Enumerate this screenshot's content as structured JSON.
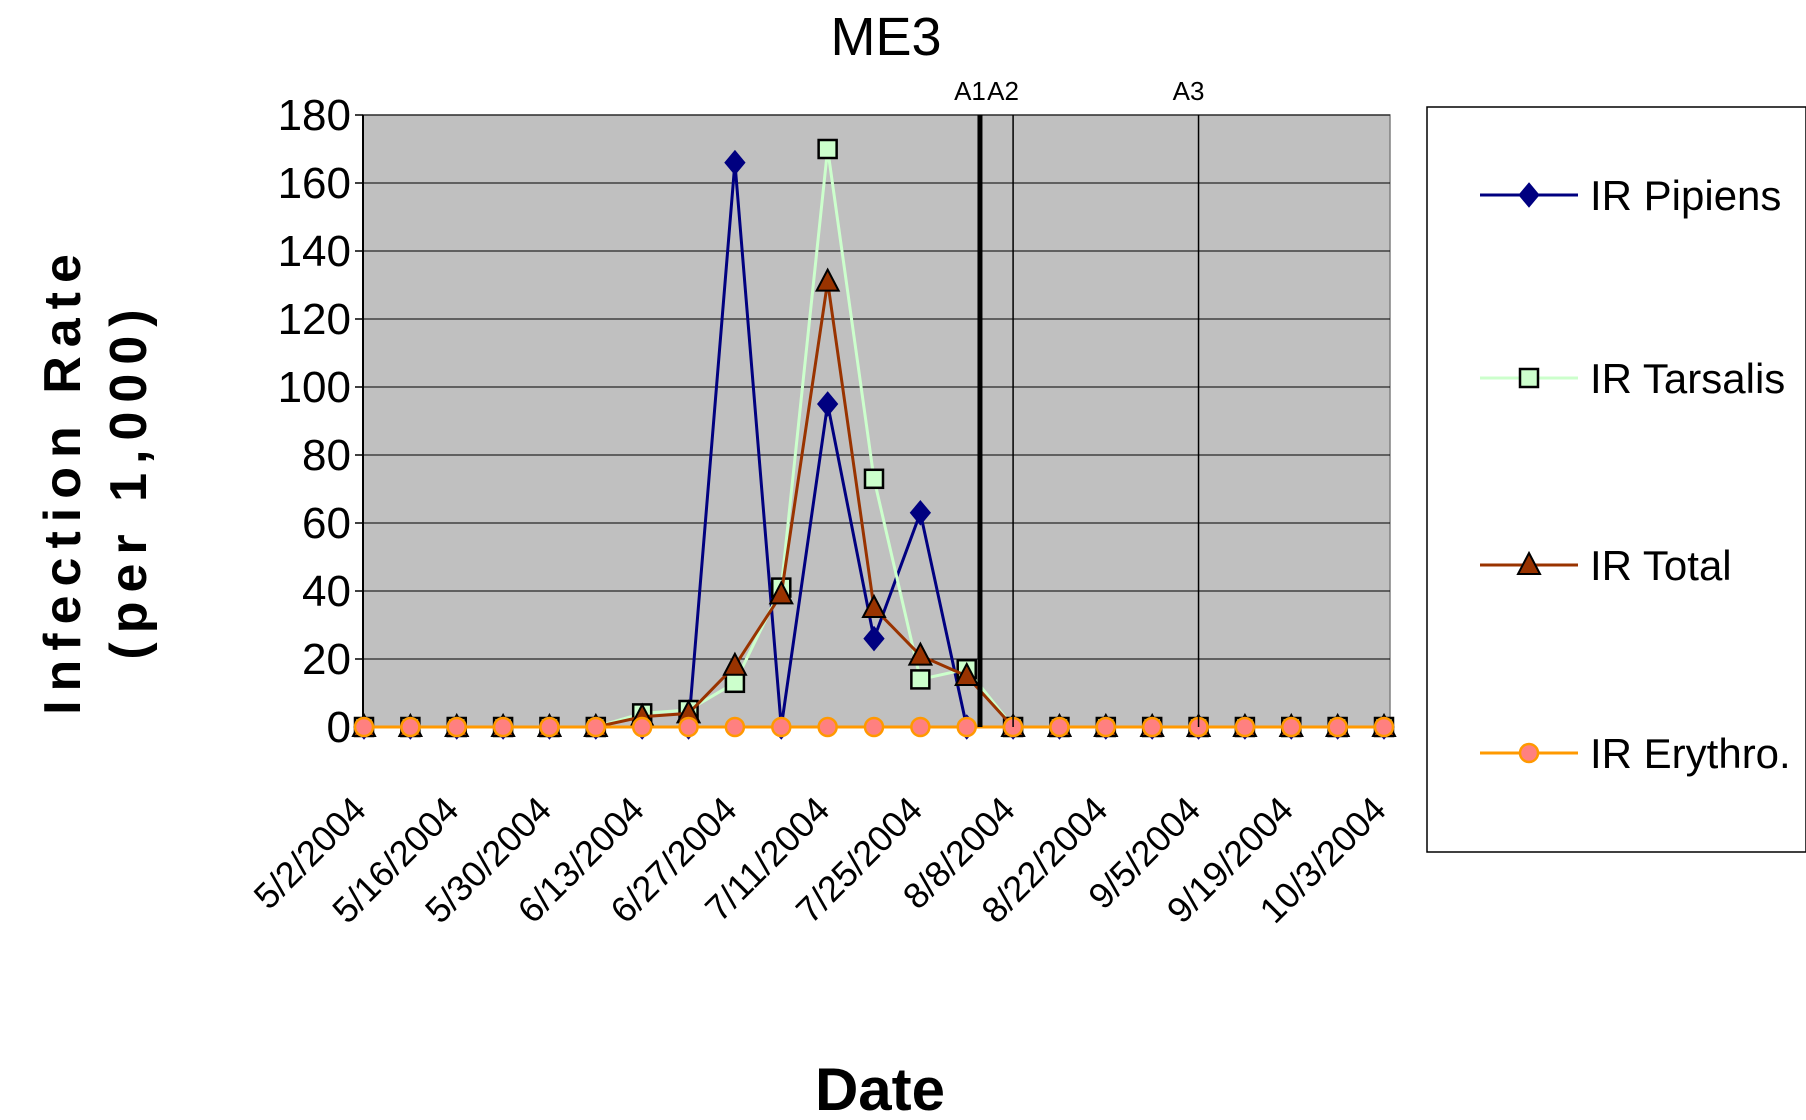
{
  "chart_data": {
    "type": "line",
    "title": "ME3",
    "xlabel": "Date",
    "ylabel_line1": "Infection Rate",
    "ylabel_line2": "(per 1,000)",
    "ylim": [
      0,
      180
    ],
    "yticks": [
      0,
      20,
      40,
      60,
      80,
      100,
      120,
      140,
      160,
      180
    ],
    "grid": true,
    "plot_background": "#c0c0c0",
    "legend_position": "right",
    "x_dates": [
      "5/2/2004",
      "5/9/2004",
      "5/16/2004",
      "5/23/2004",
      "5/30/2004",
      "6/6/2004",
      "6/13/2004",
      "6/20/2004",
      "6/27/2004",
      "7/4/2004",
      "7/11/2004",
      "7/18/2004",
      "7/25/2004",
      "8/1/2004",
      "8/8/2004",
      "8/15/2004",
      "8/22/2004",
      "8/29/2004",
      "9/5/2004",
      "9/12/2004",
      "9/19/2004",
      "9/26/2004",
      "10/3/2004"
    ],
    "x_tick_labels": [
      "5/2/2004",
      "5/16/2004",
      "5/30/2004",
      "6/13/2004",
      "6/27/2004",
      "7/11/2004",
      "7/25/2004",
      "8/8/2004",
      "8/22/2004",
      "9/5/2004",
      "9/19/2004",
      "10/3/2004"
    ],
    "series": [
      {
        "name": "IR Pipiens",
        "color": "#000080",
        "marker": "diamond",
        "values": [
          0,
          0,
          0,
          0,
          0,
          0,
          0,
          0,
          166,
          0,
          95,
          26,
          63,
          0,
          0,
          0,
          0,
          0,
          0,
          0,
          0,
          0,
          0
        ]
      },
      {
        "name": "IR Tarsalis",
        "color": "#ccffcc",
        "marker": "square",
        "values": [
          0,
          0,
          0,
          0,
          0,
          0,
          4,
          5,
          13,
          41,
          170,
          73,
          14,
          17,
          0,
          0,
          0,
          0,
          0,
          0,
          0,
          0,
          0
        ]
      },
      {
        "name": "IR Total",
        "color": "#993300",
        "marker": "triangle",
        "values": [
          0,
          0,
          0,
          0,
          0,
          0,
          3,
          4,
          18,
          39,
          131,
          35,
          21,
          15,
          0,
          0,
          0,
          0,
          0,
          0,
          0,
          0,
          0
        ]
      },
      {
        "name": "IR Erythro.",
        "color": "#ff9900",
        "marker": "circle",
        "values": [
          0,
          0,
          0,
          0,
          0,
          0,
          0,
          0,
          0,
          0,
          0,
          0,
          0,
          0,
          0,
          0,
          0,
          0,
          0,
          0,
          0,
          0,
          0
        ]
      }
    ],
    "annotations": [
      {
        "label": "A1",
        "date": "8/3/2004",
        "style": "thick"
      },
      {
        "label": "A2",
        "date": "8/8/2004",
        "style": "thin"
      },
      {
        "label": "A3",
        "date": "9/5/2004",
        "style": "thin"
      }
    ]
  }
}
